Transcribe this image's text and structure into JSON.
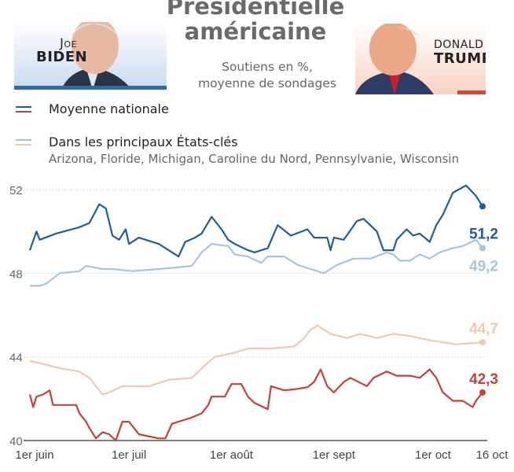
{
  "header": {
    "title_line1": "Présidentielle",
    "title_line2": "américaine",
    "subtitle_line1": "Soutiens en %,",
    "subtitle_line2": "moyenne de sondages",
    "left_candidate": {
      "first": "Joe",
      "last": "Biden",
      "color": "#1f5f99"
    },
    "right_candidate": {
      "first": "Donald",
      "last": "Trump",
      "color": "#c8403a"
    }
  },
  "legend": {
    "national": "Moyenne nationale",
    "states": "Dans les principaux États-clés",
    "states_list": "Arizona, Floride, Michigan, Caroline du Nord, Pennsylvanie, Wisconsin"
  },
  "chart_data": {
    "type": "line",
    "ylim": [
      40,
      52
    ],
    "yticks": [
      "52",
      "48",
      "44",
      "40"
    ],
    "ytick_values": [
      52,
      48,
      44,
      40
    ],
    "xticks": [
      {
        "date": "06-01",
        "label": "1er juin"
      },
      {
        "date": "07-01",
        "label": "1er juil"
      },
      {
        "date": "08-01",
        "label": "1er août"
      },
      {
        "date": "09-01",
        "label": "1er sept"
      },
      {
        "date": "10-01",
        "label": "1er oct"
      },
      {
        "date": "10-16",
        "label": "16 oct"
      }
    ],
    "xlim": [
      "06-01",
      "10-16"
    ],
    "grid": "dotted horizontal",
    "series": [
      {
        "key": "biden_states",
        "color": "#a9c4de",
        "end_label": "49,2",
        "points": [
          [
            "06-01",
            47.4
          ],
          [
            "06-04",
            47.4
          ],
          [
            "06-06",
            47.5
          ],
          [
            "06-10",
            48.0
          ],
          [
            "06-16",
            48.1
          ],
          [
            "06-18",
            48.35
          ],
          [
            "06-23",
            48.2
          ],
          [
            "06-26",
            48.2
          ],
          [
            "07-02",
            48.1
          ],
          [
            "07-10",
            48.2
          ],
          [
            "07-17",
            48.3
          ],
          [
            "07-20",
            48.35
          ],
          [
            "07-23",
            49.0
          ],
          [
            "07-26",
            49.4
          ],
          [
            "07-31",
            49.3
          ],
          [
            "08-02",
            48.9
          ],
          [
            "08-06",
            48.8
          ],
          [
            "08-10",
            48.5
          ],
          [
            "08-12",
            48.8
          ],
          [
            "08-17",
            48.8
          ],
          [
            "08-21",
            48.4
          ],
          [
            "08-25",
            48.2
          ],
          [
            "08-29",
            48.0
          ],
          [
            "08-31",
            48.2
          ],
          [
            "09-02",
            48.4
          ],
          [
            "09-07",
            48.7
          ],
          [
            "09-12",
            48.7
          ],
          [
            "09-17",
            49.0
          ],
          [
            "09-19",
            48.9
          ],
          [
            "09-21",
            48.6
          ],
          [
            "09-24",
            48.6
          ],
          [
            "09-27",
            48.9
          ],
          [
            "09-30",
            48.7
          ],
          [
            "10-03",
            49.0
          ],
          [
            "10-07",
            49.2
          ],
          [
            "10-10",
            49.3
          ],
          [
            "10-14",
            49.6
          ],
          [
            "10-16",
            49.2
          ]
        ]
      },
      {
        "key": "biden_national",
        "color": "#1f5f99",
        "end_label": "51,2",
        "points": [
          [
            "06-01",
            49.1
          ],
          [
            "06-03",
            50.0
          ],
          [
            "06-04",
            49.6
          ],
          [
            "06-09",
            49.9
          ],
          [
            "06-16",
            50.2
          ],
          [
            "06-19",
            50.4
          ],
          [
            "06-22",
            51.3
          ],
          [
            "06-24",
            51.1
          ],
          [
            "06-26",
            49.8
          ],
          [
            "06-28",
            49.6
          ],
          [
            "06-30",
            50.1
          ],
          [
            "07-01",
            49.4
          ],
          [
            "07-04",
            49.7
          ],
          [
            "07-10",
            49.4
          ],
          [
            "07-13",
            49.1
          ],
          [
            "07-16",
            48.8
          ],
          [
            "07-18",
            49.5
          ],
          [
            "07-21",
            49.7
          ],
          [
            "07-23",
            49.9
          ],
          [
            "07-26",
            50.7
          ],
          [
            "07-29",
            50.1
          ],
          [
            "07-31",
            49.6
          ],
          [
            "08-02",
            49.4
          ],
          [
            "08-06",
            49.1
          ],
          [
            "08-08",
            49.0
          ],
          [
            "08-12",
            49.2
          ],
          [
            "08-15",
            50.3
          ],
          [
            "08-19",
            49.8
          ],
          [
            "08-24",
            50.1
          ],
          [
            "08-26",
            49.7
          ],
          [
            "08-30",
            49.7
          ],
          [
            "08-31",
            49.1
          ],
          [
            "09-01",
            49.7
          ],
          [
            "09-04",
            49.6
          ],
          [
            "09-08",
            50.5
          ],
          [
            "09-10",
            50.6
          ],
          [
            "09-14",
            50.0
          ],
          [
            "09-16",
            49.1
          ],
          [
            "09-19",
            49.1
          ],
          [
            "09-20",
            49.6
          ],
          [
            "09-23",
            50.1
          ],
          [
            "09-25",
            49.8
          ],
          [
            "09-27",
            49.9
          ],
          [
            "09-30",
            49.5
          ],
          [
            "10-02",
            50.3
          ],
          [
            "10-04",
            50.8
          ],
          [
            "10-07",
            51.85
          ],
          [
            "10-11",
            52.2
          ],
          [
            "10-14",
            51.7
          ],
          [
            "10-16",
            51.2
          ]
        ]
      },
      {
        "key": "trump_states",
        "color": "#f3c7b2",
        "end_label": "44,7",
        "points": [
          [
            "06-01",
            43.8
          ],
          [
            "06-04",
            43.7
          ],
          [
            "06-09",
            43.5
          ],
          [
            "06-12",
            43.4
          ],
          [
            "06-16",
            43.3
          ],
          [
            "06-19",
            43.0
          ],
          [
            "06-23",
            42.2
          ],
          [
            "06-25",
            42.3
          ],
          [
            "06-29",
            42.6
          ],
          [
            "07-07",
            42.6
          ],
          [
            "07-13",
            42.9
          ],
          [
            "07-20",
            43.0
          ],
          [
            "07-24",
            43.6
          ],
          [
            "07-27",
            44.0
          ],
          [
            "08-02",
            44.2
          ],
          [
            "08-06",
            44.4
          ],
          [
            "08-13",
            44.4
          ],
          [
            "08-20",
            44.5
          ],
          [
            "08-23",
            44.9
          ],
          [
            "08-25",
            45.3
          ],
          [
            "08-27",
            45.5
          ],
          [
            "08-31",
            45.1
          ],
          [
            "09-05",
            44.9
          ],
          [
            "09-09",
            45.1
          ],
          [
            "09-14",
            44.9
          ],
          [
            "09-19",
            45.1
          ],
          [
            "09-24",
            45.0
          ],
          [
            "09-30",
            44.8
          ],
          [
            "10-04",
            44.7
          ],
          [
            "10-08",
            44.6
          ],
          [
            "10-16",
            44.7
          ]
        ]
      },
      {
        "key": "trump_national",
        "color": "#c8403a",
        "end_label": "42,3",
        "points": [
          [
            "06-01",
            42.2
          ],
          [
            "06-02",
            41.6
          ],
          [
            "06-03",
            42.1
          ],
          [
            "06-05",
            42.2
          ],
          [
            "06-07",
            42.4
          ],
          [
            "06-08",
            41.7
          ],
          [
            "06-15",
            41.7
          ],
          [
            "06-16",
            41.3
          ],
          [
            "06-18",
            40.9
          ],
          [
            "06-19",
            40.6
          ],
          [
            "06-21",
            40.1
          ],
          [
            "06-23",
            40.4
          ],
          [
            "06-25",
            40.3
          ],
          [
            "06-27",
            40.0
          ],
          [
            "06-29",
            40.9
          ],
          [
            "07-01",
            40.9
          ],
          [
            "07-04",
            40.3
          ],
          [
            "07-10",
            40.1
          ],
          [
            "07-12",
            40.1
          ],
          [
            "07-14",
            40.8
          ],
          [
            "07-17",
            40.95
          ],
          [
            "07-20",
            41.1
          ],
          [
            "07-23",
            41.3
          ],
          [
            "07-25",
            41.7
          ],
          [
            "07-26",
            42.1
          ],
          [
            "07-30",
            42.1
          ],
          [
            "08-01",
            42.7
          ],
          [
            "08-04",
            42.7
          ],
          [
            "08-06",
            42.1
          ],
          [
            "08-08",
            41.8
          ],
          [
            "08-12",
            41.5
          ],
          [
            "08-13",
            42.6
          ],
          [
            "08-17",
            42.4
          ],
          [
            "08-20",
            42.45
          ],
          [
            "08-24",
            42.55
          ],
          [
            "08-26",
            42.8
          ],
          [
            "08-28",
            43.4
          ],
          [
            "08-30",
            42.6
          ],
          [
            "09-01",
            42.3
          ],
          [
            "09-04",
            42.8
          ],
          [
            "09-06",
            43.0
          ],
          [
            "09-11",
            42.6
          ],
          [
            "09-13",
            43.0
          ],
          [
            "09-17",
            43.3
          ],
          [
            "09-20",
            43.1
          ],
          [
            "09-24",
            43.1
          ],
          [
            "09-27",
            43.0
          ],
          [
            "09-30",
            43.4
          ],
          [
            "10-02",
            43.0
          ],
          [
            "10-04",
            42.3
          ],
          [
            "10-07",
            41.9
          ],
          [
            "10-10",
            41.9
          ],
          [
            "10-13",
            41.6
          ],
          [
            "10-14",
            41.9
          ],
          [
            "10-16",
            42.3
          ]
        ]
      }
    ]
  }
}
